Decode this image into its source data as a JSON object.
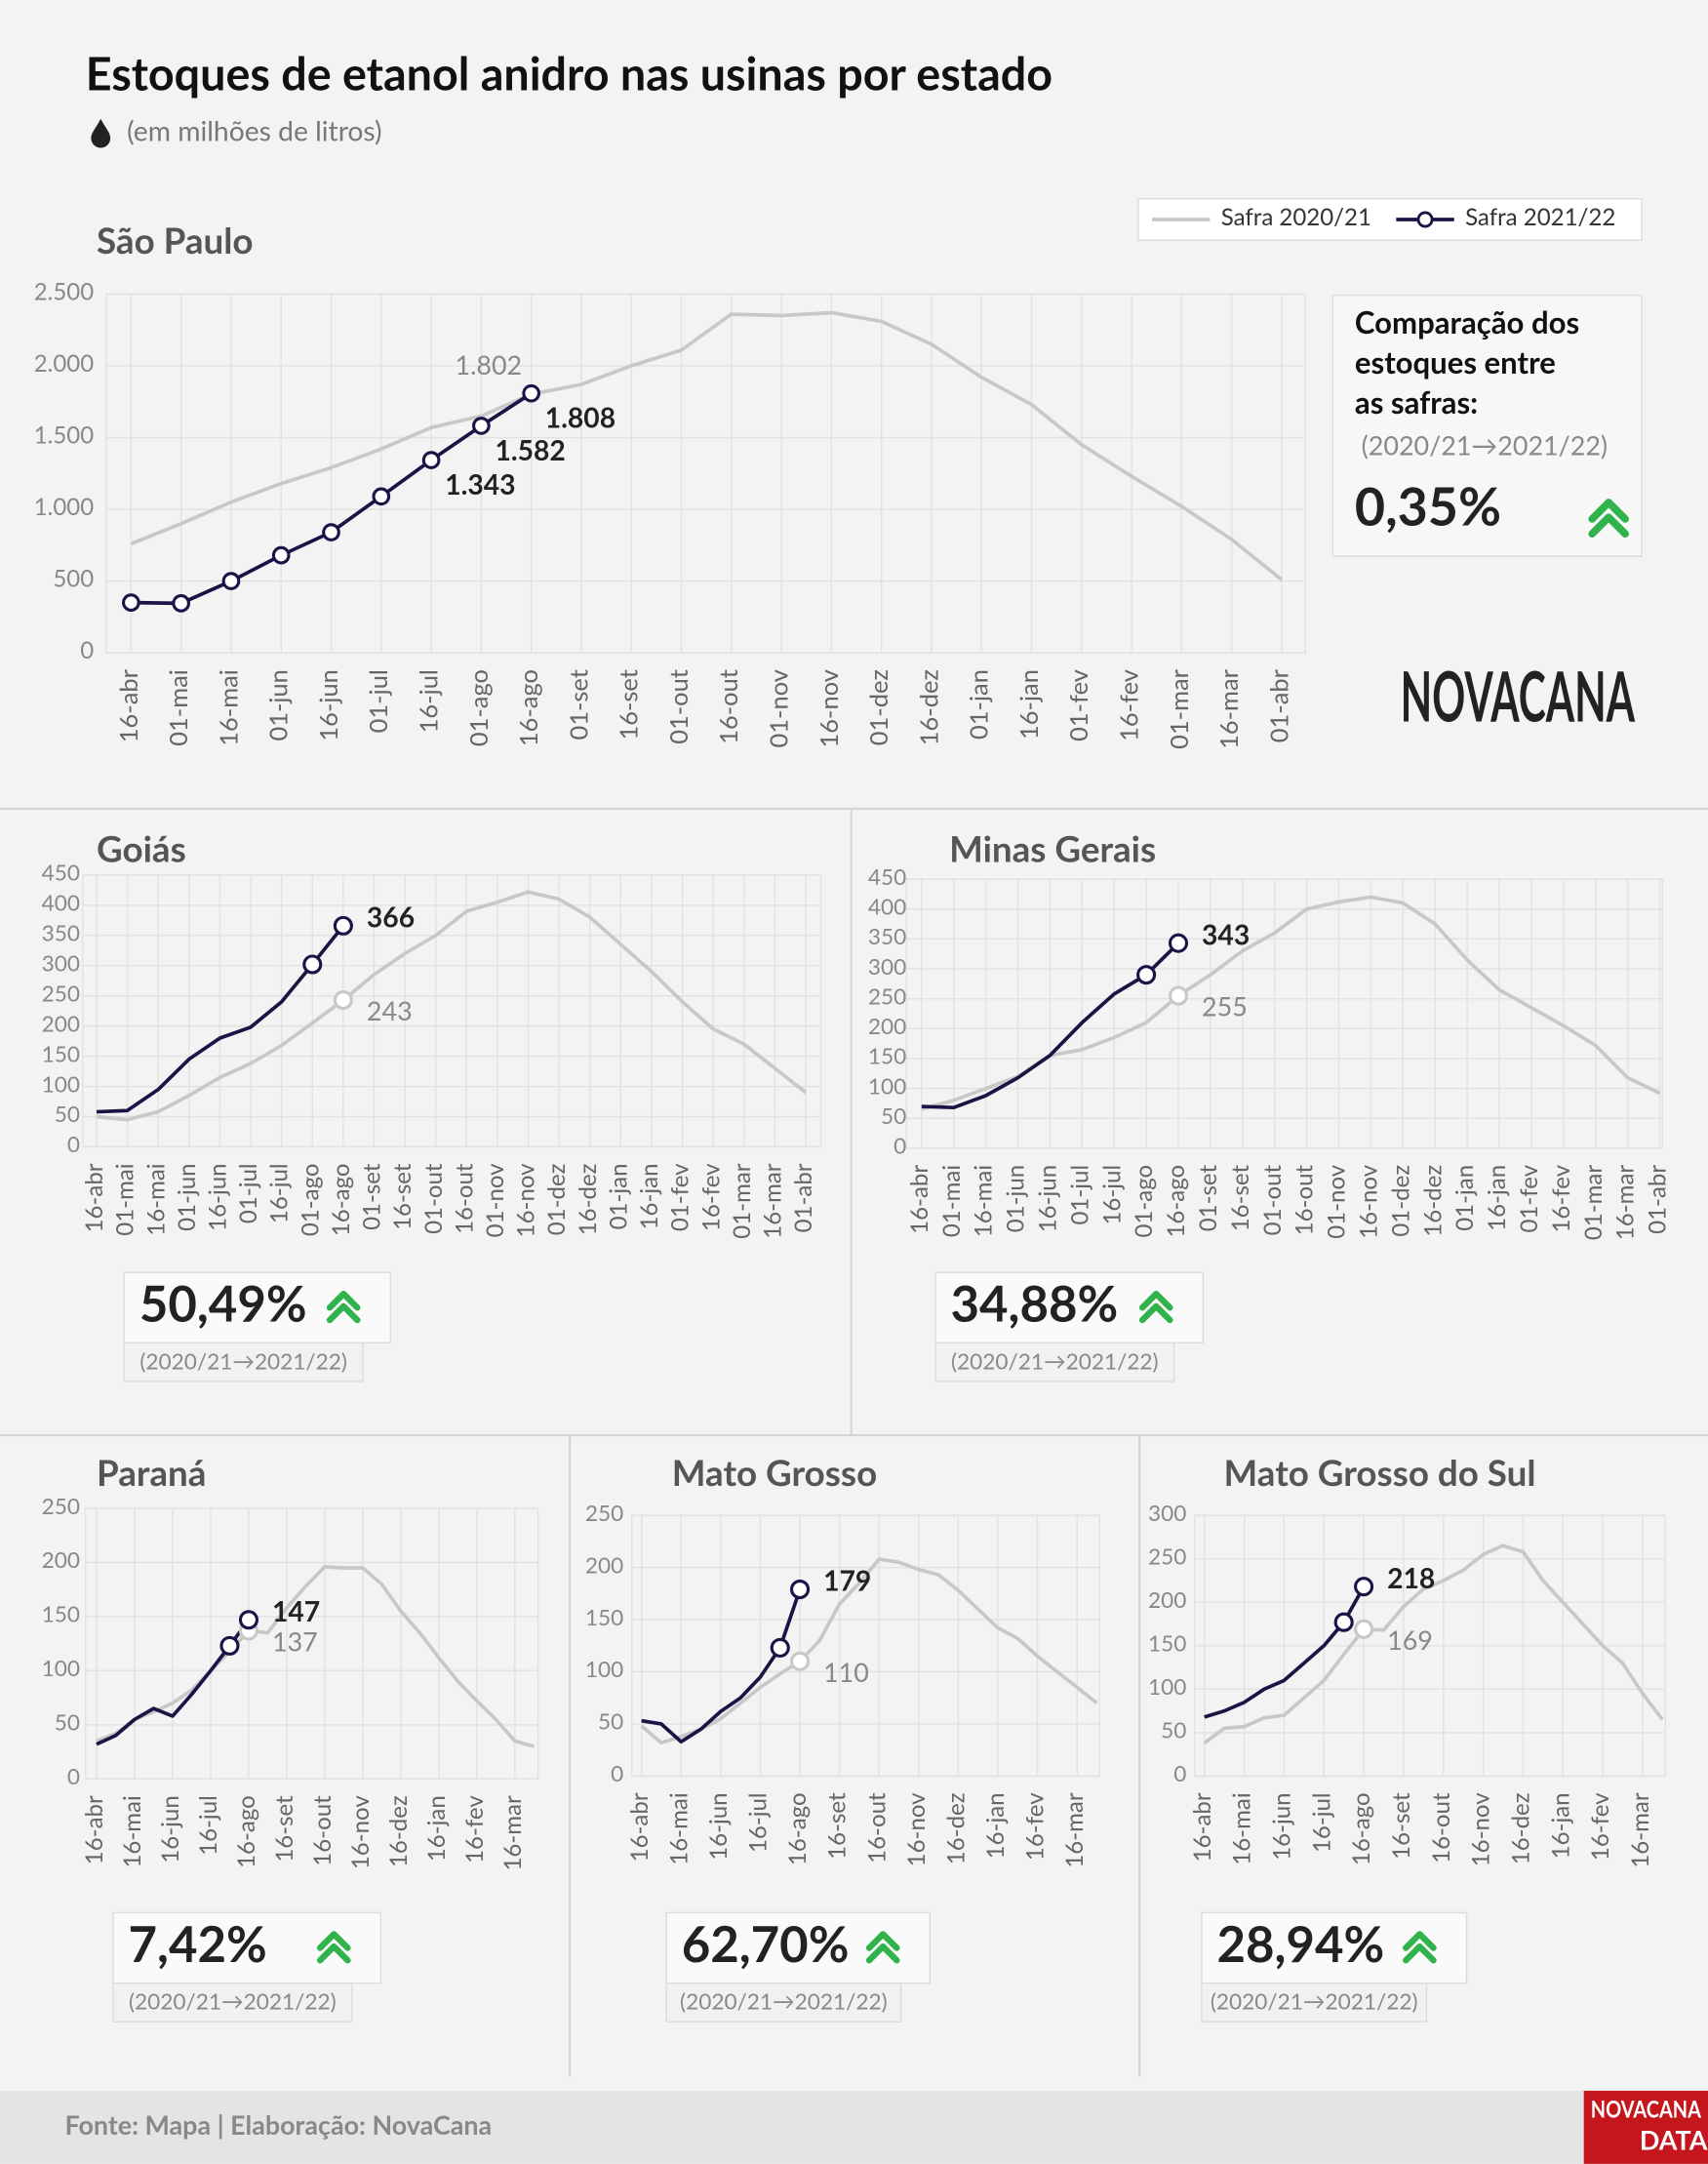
{
  "header": {
    "title": "Estoques de etanol anidro nas usinas por estado",
    "subtitle": "(em milhões de litros)"
  },
  "footer": {
    "source": "Fonte: Mapa | Elaboração: NovaCana",
    "logo": "NOVACANA",
    "badge": [
      "NOVACANA",
      "DATA"
    ]
  },
  "chart_data": [
    {
      "type": "line",
      "title": "São Paulo",
      "categories": [
        "16-abr",
        "01-mai",
        "16-mai",
        "01-jun",
        "16-jun",
        "01-jul",
        "16-jul",
        "01-ago",
        "16-ago",
        "01-set",
        "16-set",
        "01-out",
        "16-out",
        "01-nov",
        "16-nov",
        "01-dez",
        "16-dez",
        "01-jan",
        "16-jan",
        "01-fev",
        "16-fev",
        "01-mar",
        "16-mar",
        "01-abr"
      ],
      "series": [
        {
          "name": "Safra 2020/21",
          "color": "#c8c8c8",
          "values": [
            760,
            900,
            1050,
            1180,
            1290,
            1420,
            1570,
            1650,
            1802,
            1870,
            2000,
            2110,
            2360,
            2350,
            2370,
            2310,
            2150,
            1920,
            1730,
            1450,
            1230,
            1020,
            790,
            510
          ],
          "value_labels": [
            null,
            null,
            null,
            null,
            null,
            null,
            null,
            null,
            "1.802",
            null,
            null,
            null,
            null,
            null,
            null,
            null,
            null,
            null,
            null,
            null,
            null,
            null,
            null,
            null
          ]
        },
        {
          "name": "Safra 2021/22",
          "color": "#1a1446",
          "values": [
            350,
            345,
            500,
            680,
            840,
            1090,
            1343,
            1582,
            1808,
            null,
            null,
            null,
            null,
            null,
            null,
            null,
            null,
            null,
            null,
            null,
            null,
            null,
            null,
            null
          ],
          "value_labels": [
            null,
            null,
            null,
            null,
            null,
            null,
            "1.343",
            "1.582",
            "1.808",
            null,
            null,
            null,
            null,
            null,
            null,
            null,
            null,
            null,
            null,
            null,
            null,
            null,
            null,
            null
          ]
        }
      ],
      "ylim": [
        0,
        2500
      ],
      "yticks": [
        0,
        500,
        {
          "value": 1000,
          "label": "1.000"
        },
        {
          "value": 1500,
          "label": "1.500"
        },
        {
          "value": 2000,
          "label": "2.000"
        },
        {
          "value": 2500,
          "label": "2.500"
        }
      ],
      "grid": true,
      "legend": "top-right",
      "comparison": {
        "heading": [
          "Comparação dos",
          "estoques entre",
          "as safras:"
        ],
        "period": "(2020/21→2021/22)",
        "value": "0,35%"
      }
    },
    {
      "type": "line",
      "title": "Goiás",
      "categories": [
        "16-abr",
        "01-mai",
        "16-mai",
        "01-jun",
        "16-jun",
        "01-jul",
        "16-jul",
        "01-ago",
        "16-ago",
        "01-set",
        "16-set",
        "01-out",
        "16-out",
        "01-nov",
        "16-nov",
        "01-dez",
        "16-dez",
        "01-jan",
        "16-jan",
        "01-fev",
        "16-fev",
        "01-mar",
        "16-mar",
        "01-abr"
      ],
      "series": [
        {
          "color": "#c8c8c8",
          "values": [
            50,
            45,
            58,
            85,
            115,
            138,
            168,
            205,
            243,
            285,
            320,
            350,
            390,
            405,
            422,
            410,
            380,
            335,
            290,
            240,
            195,
            170,
            130,
            90
          ]
        },
        {
          "color": "#1a1446",
          "values": [
            58,
            60,
            95,
            145,
            180,
            198,
            240,
            302,
            366,
            null,
            null,
            null,
            null,
            null,
            null,
            null,
            null,
            null,
            null,
            null,
            null,
            null,
            null,
            null
          ]
        }
      ],
      "ylim": [
        0,
        450
      ],
      "yticks": [
        0,
        50,
        100,
        150,
        200,
        250,
        300,
        350,
        400,
        450
      ],
      "grid": true,
      "comparison": {
        "period": "(2020/21→2021/22)",
        "value": "50,49%"
      }
    },
    {
      "type": "line",
      "title": "Minas Gerais",
      "categories": [
        "16-abr",
        "01-mai",
        "16-mai",
        "01-jun",
        "16-jun",
        "01-jul",
        "16-jul",
        "01-ago",
        "16-ago",
        "01-set",
        "16-set",
        "01-out",
        "16-out",
        "01-nov",
        "16-nov",
        "01-dez",
        "16-dez",
        "01-jan",
        "16-jan",
        "01-fev",
        "16-fev",
        "01-mar",
        "16-mar",
        "01-abr"
      ],
      "series": [
        {
          "color": "#c8c8c8",
          "values": [
            65,
            80,
            100,
            120,
            155,
            165,
            185,
            210,
            255,
            290,
            330,
            360,
            400,
            412,
            420,
            410,
            375,
            315,
            265,
            235,
            205,
            172,
            118,
            92
          ]
        },
        {
          "color": "#1a1446",
          "values": [
            70,
            68,
            88,
            118,
            155,
            210,
            258,
            290,
            343,
            null,
            null,
            null,
            null,
            null,
            null,
            null,
            null,
            null,
            null,
            null,
            null,
            null,
            null,
            null
          ]
        }
      ],
      "ylim": [
        0,
        450
      ],
      "yticks": [
        0,
        50,
        100,
        150,
        200,
        250,
        300,
        350,
        400,
        450
      ],
      "grid": true,
      "comparison": {
        "period": "(2020/21→2021/22)",
        "value": "34,88%"
      }
    },
    {
      "type": "line",
      "title": "Paraná",
      "categories": [
        "16-abr",
        null,
        "16-mai",
        null,
        "16-jun",
        null,
        "16-jul",
        null,
        "16-ago",
        null,
        "16-set",
        null,
        "16-out",
        null,
        "16-nov",
        null,
        "16-dez",
        null,
        "16-jan",
        null,
        "16-fev",
        null,
        "16-mar",
        null
      ],
      "series": [
        {
          "color": "#c8c8c8",
          "values": [
            35,
            42,
            55,
            62,
            70,
            82,
            100,
            118,
            137,
            135,
            158,
            178,
            196,
            195,
            195,
            180,
            155,
            135,
            112,
            90,
            72,
            55,
            35,
            30
          ]
        },
        {
          "color": "#1a1446",
          "values": [
            32,
            40,
            55,
            65,
            58,
            78,
            100,
            123,
            147,
            null,
            null,
            null,
            null,
            null,
            null,
            null,
            null,
            null,
            null,
            null,
            null,
            null,
            null,
            null
          ]
        }
      ],
      "ylim": [
        0,
        250
      ],
      "yticks": [
        0,
        50,
        100,
        150,
        200,
        250
      ],
      "grid": true,
      "comparison": {
        "period": "(2020/21→2021/22)",
        "value": "7,42%"
      }
    },
    {
      "type": "line",
      "title": "Mato Grosso",
      "categories": [
        "16-abr",
        null,
        "16-mai",
        null,
        "16-jun",
        null,
        "16-jul",
        null,
        "16-ago",
        null,
        "16-set",
        null,
        "16-out",
        null,
        "16-nov",
        null,
        "16-dez",
        null,
        "16-jan",
        null,
        "16-fev",
        null,
        "16-mar",
        null
      ],
      "series": [
        {
          "color": "#c8c8c8",
          "values": [
            48,
            32,
            38,
            45,
            55,
            70,
            85,
            98,
            110,
            130,
            165,
            185,
            208,
            205,
            198,
            193,
            178,
            160,
            142,
            132,
            115,
            100,
            85,
            70
          ]
        },
        {
          "color": "#1a1446",
          "values": [
            53,
            50,
            33,
            45,
            62,
            75,
            95,
            123,
            179,
            null,
            null,
            null,
            null,
            null,
            null,
            null,
            null,
            null,
            null,
            null,
            null,
            null,
            null,
            null
          ]
        }
      ],
      "ylim": [
        0,
        250
      ],
      "yticks": [
        0,
        50,
        100,
        150,
        200,
        250
      ],
      "grid": true,
      "comparison": {
        "period": "(2020/21→2021/22)",
        "value": "62,70%"
      }
    },
    {
      "type": "line",
      "title": "Mato Grosso do Sul",
      "categories": [
        "16-abr",
        null,
        "16-mai",
        null,
        "16-jun",
        null,
        "16-jul",
        null,
        "16-ago",
        null,
        "16-set",
        null,
        "16-out",
        null,
        "16-nov",
        null,
        "16-dez",
        null,
        "16-jan",
        null,
        "16-fev",
        null,
        "16-mar",
        null
      ],
      "series": [
        {
          "color": "#c8c8c8",
          "values": [
            38,
            55,
            57,
            67,
            70,
            90,
            110,
            140,
            169,
            168,
            195,
            215,
            225,
            237,
            255,
            265,
            258,
            225,
            200,
            175,
            150,
            130,
            95,
            65
          ]
        },
        {
          "color": "#1a1446",
          "values": [
            68,
            75,
            85,
            100,
            110,
            130,
            150,
            177,
            218,
            null,
            null,
            null,
            null,
            null,
            null,
            null,
            null,
            null,
            null,
            null,
            null,
            null,
            null,
            null
          ]
        }
      ],
      "ylim": [
        0,
        300
      ],
      "yticks": [
        0,
        50,
        100,
        150,
        200,
        250,
        300
      ],
      "grid": true,
      "comparison": {
        "period": "(2020/21→2021/22)",
        "value": "28,94%"
      }
    }
  ]
}
